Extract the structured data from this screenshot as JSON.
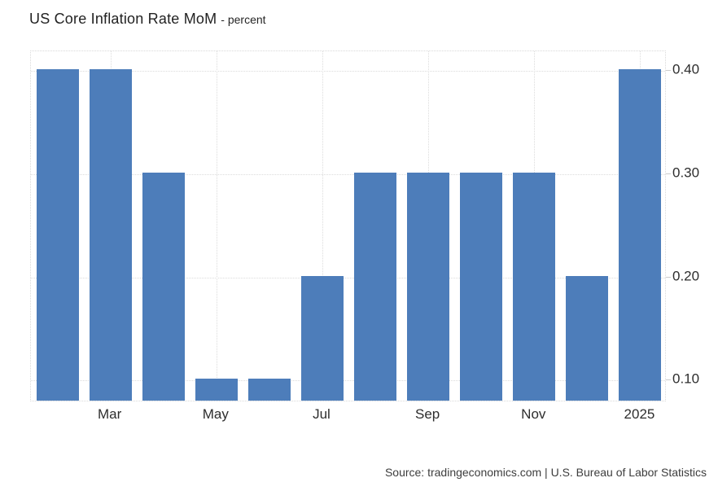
{
  "title": {
    "main": "US Core Inflation Rate MoM",
    "sub": "- percent"
  },
  "source": "Source: tradingeconomics.com | U.S. Bureau of Labor Statistics",
  "colors": {
    "bar": "#4d7dba",
    "grid": "#dcdcdc",
    "plot_border": "#d9d9d9",
    "axis_text": "#2d2d2d",
    "title_text": "#222222",
    "source_text": "#3d3d3d",
    "background": "#ffffff"
  },
  "chart_data": {
    "type": "bar",
    "title": "US Core Inflation Rate MoM",
    "ylabel": "percent",
    "values": [
      0.4,
      0.4,
      0.3,
      0.1,
      0.1,
      0.2,
      0.3,
      0.3,
      0.3,
      0.3,
      0.2,
      0.4
    ],
    "x_tick_labels": [
      "Mar",
      "May",
      "Jul",
      "Sep",
      "Nov",
      "2025"
    ],
    "x_tick_bar_indices": [
      1,
      3,
      5,
      7,
      9,
      11
    ],
    "y_tick_labels": [
      "0.40",
      "0.30",
      "0.20",
      "0.10"
    ],
    "y_tick_values": [
      0.4,
      0.3,
      0.2,
      0.1
    ],
    "ylim": [
      0.079,
      0.419
    ],
    "grid": "dotted",
    "legend": "none",
    "bar_color": "#4d7dba"
  }
}
